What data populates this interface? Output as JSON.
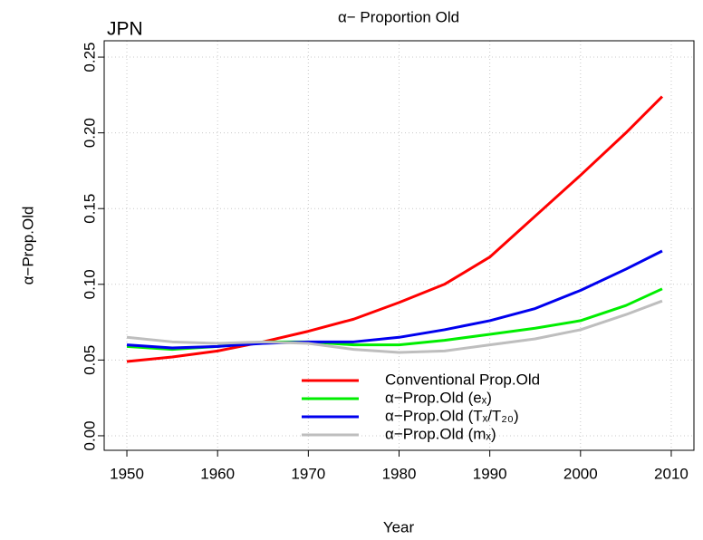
{
  "chart_data": {
    "type": "line",
    "title": "α− Proportion Old",
    "annotation": "JPN",
    "x_label": "Year",
    "y_label": "α−Prop.Old",
    "x": [
      1950,
      1955,
      1960,
      1965,
      1970,
      1975,
      1980,
      1985,
      1990,
      1995,
      2000,
      2005,
      2009
    ],
    "series": [
      {
        "name": "Conventional Prop.Old",
        "color": "#ff0000",
        "values": [
          0.049,
          0.052,
          0.056,
          0.062,
          0.069,
          0.077,
          0.088,
          0.1,
          0.118,
          0.145,
          0.172,
          0.2,
          0.224
        ]
      },
      {
        "name": "α−Prop.Old (eₓ)",
        "color": "#00ee00",
        "values": [
          0.059,
          0.057,
          0.059,
          0.062,
          0.062,
          0.06,
          0.06,
          0.063,
          0.067,
          0.071,
          0.076,
          0.086,
          0.097
        ]
      },
      {
        "name": "α−Prop.Old (Tₓ/T₂₀)",
        "color": "#0000ee",
        "values": [
          0.06,
          0.058,
          0.059,
          0.061,
          0.062,
          0.062,
          0.065,
          0.07,
          0.076,
          0.084,
          0.096,
          0.11,
          0.122
        ]
      },
      {
        "name": "α−Prop.Old (mₓ)",
        "color": "#bebebe",
        "values": [
          0.065,
          0.062,
          0.061,
          0.062,
          0.061,
          0.057,
          0.055,
          0.056,
          0.06,
          0.064,
          0.07,
          0.08,
          0.089
        ]
      }
    ],
    "xlim": [
      1947.5,
      2012.5
    ],
    "xticks": [
      1950,
      1960,
      1970,
      1980,
      1990,
      2000,
      2010
    ],
    "ylim": [
      -0.0096,
      0.2608
    ],
    "yticks": [
      {
        "value": 0,
        "label": "0.00"
      },
      {
        "value": 0.05,
        "label": "0.05"
      },
      {
        "value": 0.1,
        "label": "0.10"
      },
      {
        "value": 0.15,
        "label": "0.15"
      },
      {
        "value": 0.2,
        "label": "0.20"
      },
      {
        "value": 0.25,
        "label": "0.25"
      }
    ],
    "grid": true,
    "legend": "bottom"
  }
}
